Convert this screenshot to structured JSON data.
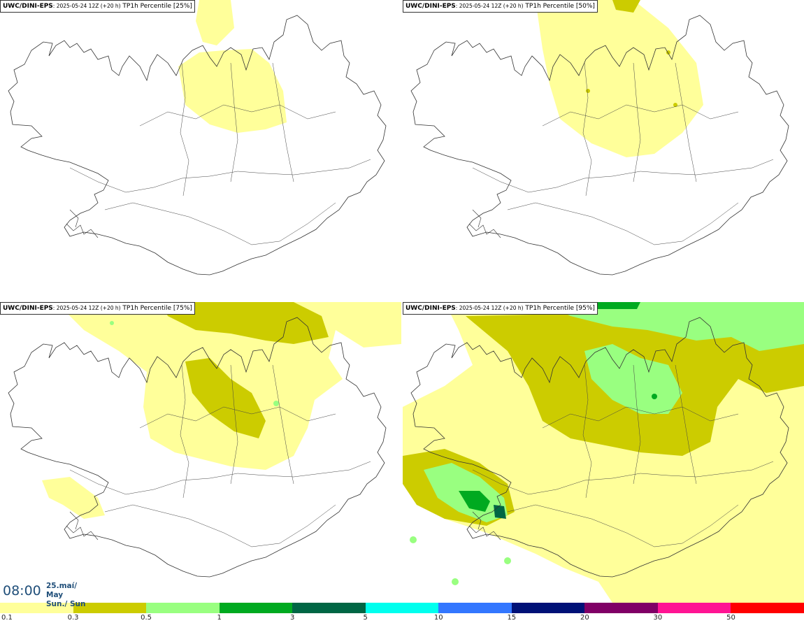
{
  "panels": [
    {
      "source": "UWC/DINI-EPS",
      "run": ": 2025-05-24 12Z (+20 h)",
      "field": " TP1h Percentile [25%]",
      "level": 1
    },
    {
      "source": "UWC/DINI-EPS",
      "run": ": 2025-05-24 12Z (+20 h)",
      "field": " TP1h Percentile [50%]",
      "level": 2
    },
    {
      "source": "UWC/DINI-EPS",
      "run": ": 2025-05-24 12Z (+20 h)",
      "field": " TP1h Percentile [75%]",
      "level": 3
    },
    {
      "source": "UWC/DINI-EPS",
      "run": ": 2025-05-24 12Z (+20 h)",
      "field": " TP1h Percentile [95%]",
      "level": 4
    }
  ],
  "time": {
    "clock": "08:00",
    "date_line1": "25.maí/ May",
    "date_line2": "Sun./ Sun"
  },
  "legend": {
    "colors": [
      "#ffff9a",
      "#cccc00",
      "#99ff80",
      "#00aa20",
      "#006644",
      "#00ffee",
      "#3377ff",
      "#001177",
      "#800066",
      "#ff1493",
      "#ff0000"
    ],
    "labels": [
      "0.1",
      "0.3",
      "0.5",
      "1",
      "3",
      "5",
      "10",
      "15",
      "20",
      "30",
      "50"
    ]
  },
  "palette": {
    "light_yellow": "#ffff9a",
    "olive": "#cccc00",
    "light_green": "#99ff80",
    "green": "#00aa20",
    "dark_green": "#006644"
  }
}
